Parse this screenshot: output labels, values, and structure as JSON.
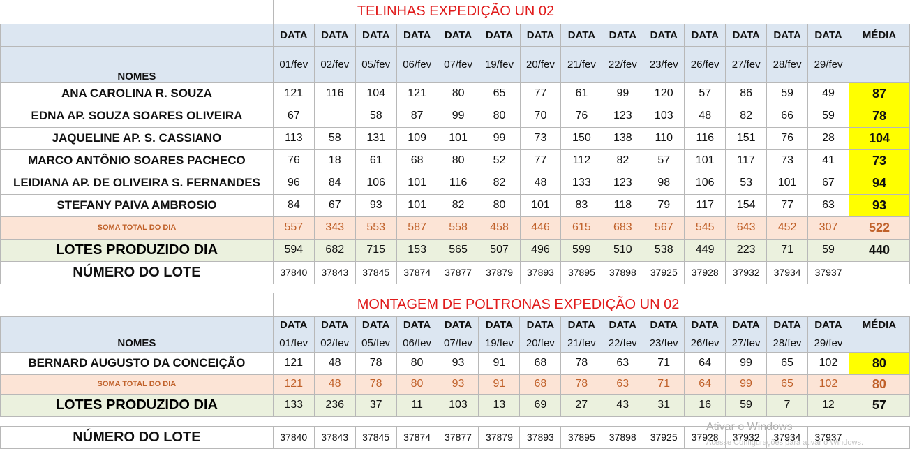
{
  "dates": [
    "01/fev",
    "02/fev",
    "05/fev",
    "06/fev",
    "07/fev",
    "19/fev",
    "20/fev",
    "21/fev",
    "22/fev",
    "23/fev",
    "26/fev",
    "27/fev",
    "28/fev",
    "29/fev"
  ],
  "labels": {
    "data": "DATA",
    "media": "MÉDIA",
    "nomes": "NOMES",
    "soma": "SOMA TOTAL DO DIA",
    "lotes": "LOTES PRODUZIDO DIA",
    "numero_lote": "NÚMERO DO LOTE"
  },
  "table1": {
    "title": "TELINHAS EXPEDIÇÃO UN 02",
    "rows": [
      {
        "name": "ANA CAROLINA R. SOUZA",
        "values": [
          "121",
          "116",
          "104",
          "121",
          "80",
          "65",
          "77",
          "61",
          "99",
          "120",
          "57",
          "86",
          "59",
          "49"
        ],
        "media": "87"
      },
      {
        "name": "EDNA AP. SOUZA SOARES OLIVEIRA",
        "values": [
          "67",
          "",
          "58",
          "87",
          "99",
          "80",
          "70",
          "76",
          "123",
          "103",
          "48",
          "82",
          "66",
          "59"
        ],
        "media": "78"
      },
      {
        "name": "JAQUELINE AP.  S. CASSIANO",
        "values": [
          "113",
          "58",
          "131",
          "109",
          "101",
          "99",
          "73",
          "150",
          "138",
          "110",
          "116",
          "151",
          "76",
          "28"
        ],
        "media": "104"
      },
      {
        "name": "MARCO ANTÔNIO SOARES PACHECO",
        "values": [
          "76",
          "18",
          "61",
          "68",
          "80",
          "52",
          "77",
          "112",
          "82",
          "57",
          "101",
          "117",
          "73",
          "41"
        ],
        "media": "73"
      },
      {
        "name": "LEIDIANA AP. DE OLIVEIRA S. FERNANDES",
        "values": [
          "96",
          "84",
          "106",
          "101",
          "116",
          "82",
          "48",
          "133",
          "123",
          "98",
          "106",
          "53",
          "101",
          "67"
        ],
        "media": "94"
      },
      {
        "name": "STEFANY PAIVA AMBROSIO",
        "values": [
          "84",
          "67",
          "93",
          "101",
          "82",
          "80",
          "101",
          "83",
          "118",
          "79",
          "117",
          "154",
          "77",
          "63"
        ],
        "media": "93"
      }
    ],
    "soma": {
      "values": [
        "557",
        "343",
        "553",
        "587",
        "558",
        "458",
        "446",
        "615",
        "683",
        "567",
        "545",
        "643",
        "452",
        "307"
      ],
      "media": "522"
    },
    "lotes": {
      "values": [
        "594",
        "682",
        "715",
        "153",
        "565",
        "507",
        "496",
        "599",
        "510",
        "538",
        "449",
        "223",
        "71",
        "59"
      ],
      "media": "440"
    },
    "numero_lote": [
      "37840",
      "37843",
      "37845",
      "37874",
      "37877",
      "37879",
      "37893",
      "37895",
      "37898",
      "37925",
      "37928",
      "37932",
      "37934",
      "37937"
    ]
  },
  "table2": {
    "title": "MONTAGEM DE POLTRONAS EXPEDIÇÃO UN 02",
    "rows": [
      {
        "name": "BERNARD AUGUSTO DA CONCEIÇÃO",
        "values": [
          "121",
          "48",
          "78",
          "80",
          "93",
          "91",
          "68",
          "78",
          "63",
          "71",
          "64",
          "99",
          "65",
          "102"
        ],
        "media": "80"
      }
    ],
    "soma": {
      "values": [
        "121",
        "48",
        "78",
        "80",
        "93",
        "91",
        "68",
        "78",
        "63",
        "71",
        "64",
        "99",
        "65",
        "102"
      ],
      "media": "80"
    },
    "lotes": {
      "values": [
        "133",
        "236",
        "37",
        "11",
        "103",
        "13",
        "69",
        "27",
        "43",
        "31",
        "16",
        "59",
        "7",
        "12"
      ],
      "media": "57"
    },
    "numero_lote": [
      "37840",
      "37843",
      "37845",
      "37874",
      "37877",
      "37879",
      "37893",
      "37895",
      "37898",
      "37925",
      "37928",
      "37932",
      "37934",
      "37937"
    ]
  },
  "watermark": {
    "line1": "Ativar o Windows",
    "line2": "Acesse Configurações para ativar o Windows."
  }
}
